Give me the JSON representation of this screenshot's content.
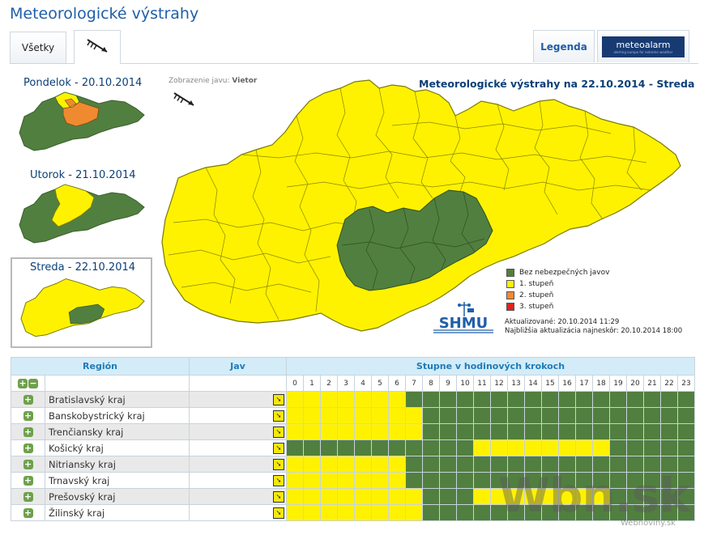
{
  "page_title": "Meteorologické výstrahy",
  "tabs": {
    "all_label": "Všetky",
    "wind_icon": "wind-arrow-icon",
    "legend_label": "Legenda",
    "meteoalarm_label": "meteoalarm",
    "meteoalarm_sub": "alerting europe for extreme weather"
  },
  "mini_maps": [
    {
      "label": "Pondelok - 20.10.2014"
    },
    {
      "label": "Utorok - 21.10.2014"
    },
    {
      "label": "Streda - 22.10.2014"
    }
  ],
  "display_phenomenon": {
    "prefix": "Zobrazenie javu:",
    "value": "Vietor"
  },
  "main_map_title": "Meteorologické výstrahy na 22.10.2014 - Streda",
  "legend": [
    {
      "label": "Bez nebezpečných javov",
      "color": "#517f3f"
    },
    {
      "label": "1. stupeň",
      "color": "#fff200"
    },
    {
      "label": "2. stupeň",
      "color": "#f08a30"
    },
    {
      "label": "3. stupeň",
      "color": "#e2231a"
    }
  ],
  "logo": "SHMU",
  "updated": "Aktualizované: 20.10.2014 11:29",
  "next_update": "Najbližšia aktualizácia najneskôr: 20.10.2014 18:00",
  "table": {
    "col_region": "Región",
    "col_phenomenon": "Jav",
    "col_hours": "Stupne v hodinových krokoch",
    "hours": [
      "0",
      "1",
      "2",
      "3",
      "4",
      "5",
      "6",
      "7",
      "8",
      "9",
      "10",
      "11",
      "12",
      "13",
      "14",
      "15",
      "16",
      "17",
      "18",
      "19",
      "20",
      "21",
      "22",
      "23"
    ],
    "rows": [
      {
        "region": "Bratislavský kraj",
        "levels": [
          1,
          1,
          1,
          1,
          1,
          1,
          1,
          0,
          0,
          0,
          0,
          0,
          0,
          0,
          0,
          0,
          0,
          0,
          0,
          0,
          0,
          0,
          0,
          0
        ]
      },
      {
        "region": "Banskobystrický kraj",
        "levels": [
          1,
          1,
          1,
          1,
          1,
          1,
          1,
          1,
          0,
          0,
          0,
          0,
          0,
          0,
          0,
          0,
          0,
          0,
          0,
          0,
          0,
          0,
          0,
          0
        ]
      },
      {
        "region": "Trenčiansky kraj",
        "levels": [
          1,
          1,
          1,
          1,
          1,
          1,
          1,
          1,
          0,
          0,
          0,
          0,
          0,
          0,
          0,
          0,
          0,
          0,
          0,
          0,
          0,
          0,
          0,
          0
        ]
      },
      {
        "region": "Košický kraj",
        "levels": [
          0,
          0,
          0,
          0,
          0,
          0,
          0,
          0,
          0,
          0,
          0,
          1,
          1,
          1,
          1,
          1,
          1,
          1,
          1,
          0,
          0,
          0,
          0,
          0
        ]
      },
      {
        "region": "Nitriansky kraj",
        "levels": [
          1,
          1,
          1,
          1,
          1,
          1,
          1,
          0,
          0,
          0,
          0,
          0,
          0,
          0,
          0,
          0,
          0,
          0,
          0,
          0,
          0,
          0,
          0,
          0
        ]
      },
      {
        "region": "Trnavský kraj",
        "levels": [
          1,
          1,
          1,
          1,
          1,
          1,
          1,
          0,
          0,
          0,
          0,
          0,
          0,
          0,
          0,
          0,
          0,
          0,
          0,
          0,
          0,
          0,
          0,
          0
        ]
      },
      {
        "region": "Prešovský kraj",
        "levels": [
          1,
          1,
          1,
          1,
          1,
          1,
          1,
          1,
          0,
          0,
          0,
          1,
          1,
          1,
          1,
          1,
          1,
          1,
          1,
          0,
          0,
          0,
          0,
          0
        ]
      },
      {
        "region": "Žilinský kraj",
        "levels": [
          1,
          1,
          1,
          1,
          1,
          1,
          1,
          1,
          0,
          0,
          0,
          0,
          0,
          0,
          0,
          0,
          0,
          0,
          0,
          0,
          0,
          0,
          0,
          0
        ]
      }
    ]
  },
  "watermark": "Wbn.sk",
  "watermark_sub": "Webnoviny.sk"
}
